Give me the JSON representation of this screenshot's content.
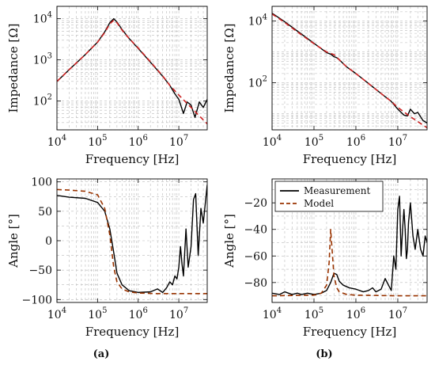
{
  "chart_data": [
    {
      "id": "a_top",
      "type": "line",
      "xlabel": "Frequency [Hz]",
      "ylabel": "Impedance [Ω]",
      "xscale": "log",
      "yscale": "log",
      "xlim": [
        10000,
        50000000
      ],
      "ylim": [
        20,
        20000
      ],
      "xticks": [
        {
          "base": "10",
          "exp": "4"
        },
        {
          "base": "10",
          "exp": "5"
        },
        {
          "base": "10",
          "exp": "6"
        },
        {
          "base": "10",
          "exp": "7"
        }
      ],
      "yticks": [
        {
          "base": "10",
          "exp": "2"
        },
        {
          "base": "10",
          "exp": "3"
        },
        {
          "base": "10",
          "exp": "4"
        }
      ],
      "grid": true,
      "series": [
        {
          "name": "Measurement",
          "color": "#000000",
          "style": "solid",
          "x": [
            10000,
            20000,
            50000,
            100000,
            150000,
            200000,
            250000,
            300000,
            400000,
            600000,
            1000000,
            2000000,
            4000000,
            6000000,
            8000000,
            10000000,
            13000000,
            16000000,
            20000000,
            25000000,
            32000000,
            40000000,
            50000000
          ],
          "y": [
            300,
            580,
            1350,
            2700,
            4800,
            8000,
            10000,
            8300,
            5500,
            3300,
            1900,
            880,
            400,
            240,
            150,
            110,
            50,
            95,
            80,
            40,
            95,
            70,
            110
          ]
        },
        {
          "name": "Model",
          "color": "#cc2222",
          "style": "dashed",
          "x": [
            10000,
            20000,
            50000,
            100000,
            150000,
            200000,
            250000,
            300000,
            400000,
            600000,
            1000000,
            2000000,
            4000000,
            6000000,
            10000000,
            20000000,
            50000000
          ],
          "y": [
            300,
            580,
            1350,
            2700,
            4600,
            7500,
            9200,
            8000,
            5300,
            3300,
            1950,
            900,
            410,
            240,
            140,
            70,
            28
          ]
        }
      ]
    },
    {
      "id": "a_bottom",
      "type": "line",
      "xlabel": "Frequency [Hz]",
      "ylabel": "Angle [°]",
      "xscale": "log",
      "xlim": [
        10000,
        50000000
      ],
      "ylim": [
        -105,
        105
      ],
      "xticks": [
        {
          "base": "10",
          "exp": "4"
        },
        {
          "base": "10",
          "exp": "5"
        },
        {
          "base": "10",
          "exp": "6"
        },
        {
          "base": "10",
          "exp": "7"
        }
      ],
      "yticks": [
        "100",
        "50",
        "0",
        "−50",
        "−100"
      ],
      "ytick_values": [
        100,
        50,
        0,
        -50,
        -100
      ],
      "grid": true,
      "series": [
        {
          "name": "Measurement",
          "color": "#000000",
          "style": "solid",
          "x": [
            10000,
            20000,
            50000,
            100000,
            150000,
            200000,
            250000,
            300000,
            400000,
            600000,
            1000000,
            2000000,
            3000000,
            4000000,
            5000000,
            6000000,
            7000000,
            8000000,
            9000000,
            10000000,
            11000000,
            12000000,
            13000000,
            15000000,
            17000000,
            20000000,
            23000000,
            26000000,
            30000000,
            35000000,
            40000000,
            50000000
          ],
          "y": [
            77,
            74,
            72,
            65,
            50,
            20,
            -20,
            -55,
            -75,
            -85,
            -88,
            -87,
            -82,
            -88,
            -80,
            -70,
            -75,
            -60,
            -65,
            -45,
            -10,
            -40,
            -60,
            20,
            -45,
            -10,
            70,
            80,
            -25,
            55,
            30,
            95
          ]
        },
        {
          "name": "Model",
          "color": "#993300",
          "style": "dashed",
          "x": [
            10000,
            20000,
            50000,
            100000,
            150000,
            200000,
            250000,
            300000,
            400000,
            600000,
            1000000,
            3000000,
            10000000,
            50000000
          ],
          "y": [
            87,
            86,
            84,
            78,
            55,
            10,
            -45,
            -70,
            -82,
            -87,
            -89,
            -90,
            -90,
            -90
          ]
        }
      ]
    },
    {
      "id": "b_top",
      "type": "line",
      "xlabel": "Frequency [Hz]",
      "ylabel": "Impedance [Ω]",
      "xscale": "log",
      "yscale": "log",
      "xlim": [
        10000,
        50000000
      ],
      "ylim": [
        3,
        30000
      ],
      "xticks": [
        {
          "base": "10",
          "exp": "4"
        },
        {
          "base": "10",
          "exp": "5"
        },
        {
          "base": "10",
          "exp": "6"
        },
        {
          "base": "10",
          "exp": "7"
        }
      ],
      "yticks": [
        {
          "base": "10",
          "exp": "2"
        },
        {
          "base": "10",
          "exp": "4"
        }
      ],
      "grid": true,
      "series": [
        {
          "name": "Measurement",
          "color": "#000000",
          "style": "solid",
          "x": [
            10000,
            20000,
            50000,
            100000,
            200000,
            250000,
            300000,
            350000,
            400000,
            600000,
            1000000,
            2000000,
            4000000,
            7000000,
            10000000,
            14000000,
            17000000,
            20000000,
            25000000,
            30000000,
            40000000,
            50000000
          ],
          "y": [
            18000,
            9500,
            3800,
            1900,
            950,
            850,
            700,
            650,
            560,
            330,
            200,
            95,
            45,
            25,
            14,
            9,
            8.5,
            14,
            10,
            11,
            6,
            5
          ]
        },
        {
          "name": "Model",
          "color": "#cc2222",
          "style": "dashed",
          "x": [
            10000,
            20000,
            50000,
            100000,
            200000,
            250000,
            300000,
            350000,
            400000,
            600000,
            1000000,
            2000000,
            4000000,
            7000000,
            10000000,
            20000000,
            50000000
          ],
          "y": [
            17000,
            9000,
            3600,
            1850,
            1000,
            900,
            820,
            680,
            560,
            330,
            200,
            95,
            45,
            25,
            16,
            8,
            3.5
          ]
        }
      ]
    },
    {
      "id": "b_bottom",
      "type": "line",
      "xlabel": "Frequency [Hz]",
      "ylabel": "Angle [°]",
      "xscale": "log",
      "xlim": [
        10000,
        50000000
      ],
      "ylim": [
        -95,
        -2
      ],
      "xticks": [
        {
          "base": "10",
          "exp": "4"
        },
        {
          "base": "10",
          "exp": "5"
        },
        {
          "base": "10",
          "exp": "6"
        },
        {
          "base": "10",
          "exp": "7"
        }
      ],
      "yticks": [
        "−20",
        "−40",
        "−60",
        "−80"
      ],
      "ytick_values": [
        -20,
        -40,
        -60,
        -80
      ],
      "grid": true,
      "legend": {
        "position": "top-left",
        "entries": [
          "Measurement",
          "Model"
        ]
      },
      "series": [
        {
          "name": "Measurement",
          "color": "#000000",
          "style": "solid",
          "x": [
            10000,
            15000,
            20000,
            30000,
            40000,
            50000,
            70000,
            100000,
            150000,
            200000,
            250000,
            300000,
            350000,
            400000,
            500000,
            700000,
            1000000,
            1500000,
            2000000,
            2500000,
            3000000,
            4000000,
            5000000,
            6000000,
            7000000,
            8000000,
            9000000,
            10000000,
            11000000,
            12000000,
            13000000,
            14000000,
            15000000,
            16000000,
            17000000,
            18000000,
            20000000,
            23000000,
            26000000,
            30000000,
            35000000,
            40000000,
            45000000,
            50000000
          ],
          "y": [
            -88,
            -89,
            -87,
            -89,
            -88,
            -89,
            -88,
            -89,
            -88,
            -86,
            -80,
            -73,
            -74,
            -79,
            -82,
            -84,
            -85,
            -87,
            -86,
            -84,
            -87,
            -85,
            -77,
            -82,
            -86,
            -60,
            -70,
            -25,
            -15,
            -60,
            -40,
            -25,
            -40,
            -62,
            -55,
            -35,
            -20,
            -45,
            -55,
            -40,
            -55,
            -60,
            -45,
            -50
          ]
        },
        {
          "name": "Model",
          "color": "#993300",
          "style": "dashed",
          "x": [
            10000,
            100000,
            150000,
            200000,
            230000,
            250000,
            270000,
            300000,
            350000,
            400000,
            600000,
            1000000,
            10000000,
            50000000
          ],
          "y": [
            -90,
            -89.5,
            -88,
            -82,
            -65,
            -40,
            -55,
            -75,
            -84,
            -87,
            -89,
            -89.5,
            -90,
            -90
          ]
        }
      ]
    }
  ],
  "captions": {
    "a": "(a)",
    "b": "(b)"
  }
}
